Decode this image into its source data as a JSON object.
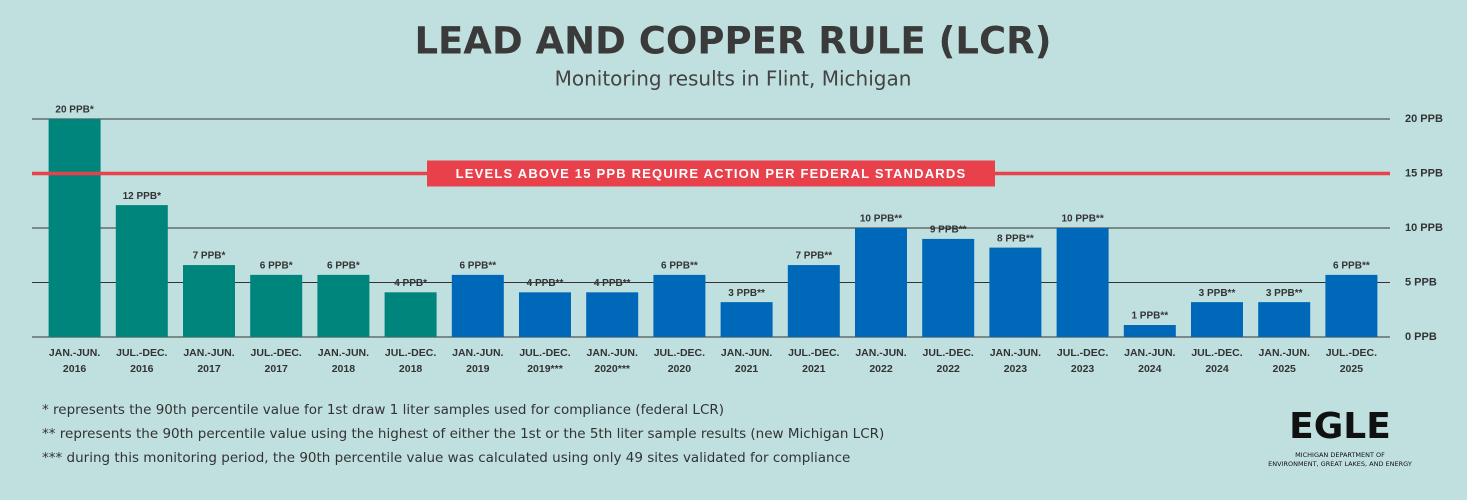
{
  "chart_data": {
    "type": "bar",
    "title": "LEAD AND COPPER RULE (LCR)",
    "subtitle": "Monitoring results in Flint, Michigan",
    "categories": [
      "JAN.-JUN.\n2016",
      "JUL.-DEC.\n2016",
      "JAN.-JUN.\n2017",
      "JUL.-DEC.\n2017",
      "JAN.-JUN.\n2018",
      "JUL.-DEC.\n2018",
      "JAN.-JUN.\n2019",
      "JUL.-DEC.\n2019***",
      "JAN.-JUN.\n2020***",
      "JUL.-DEC.\n2020",
      "JAN.-JUN.\n2021",
      "JUL.-DEC.\n2021",
      "JAN.-JUN.\n2022",
      "JUL.-DEC.\n2022",
      "JAN.-JUN.\n2023",
      "JUL.-DEC.\n2023",
      "JAN.-JUN.\n2024",
      "JUL.-DEC.\n2024",
      "JAN.-JUN.\n2025",
      "JUL.-DEC.\n2025"
    ],
    "values": [
      20,
      12.1,
      6.6,
      5.7,
      5.7,
      4.1,
      5.7,
      4.1,
      4.1,
      5.7,
      3.2,
      6.6,
      10,
      9,
      8.2,
      10,
      1.1,
      3.2,
      3.2,
      5.7
    ],
    "value_labels": [
      "20 PPB*",
      "12 PPB*",
      "7 PPB*",
      "6 PPB*",
      "6 PPB*",
      "4 PPB*",
      "6 PPB**",
      "4 PPB**",
      "4 PPB**",
      "6 PPB**",
      "3 PPB**",
      "7 PPB**",
      "10 PPB**",
      "9 PPB**",
      "8 PPB**",
      "10 PPB**",
      "1 PPB**",
      "3 PPB**",
      "3 PPB**",
      "6 PPB**"
    ],
    "colors": [
      "#00857d",
      "#00857d",
      "#00857d",
      "#00857d",
      "#00857d",
      "#00857d",
      "#0068b9",
      "#0068b9",
      "#0068b9",
      "#0068b9",
      "#0068b9",
      "#0068b9",
      "#0068b9",
      "#0068b9",
      "#0068b9",
      "#0068b9",
      "#0068b9",
      "#0068b9",
      "#0068b9",
      "#0068b9"
    ],
    "ylim": [
      0,
      20
    ],
    "yticks": [
      {
        "value": 0,
        "label": "0 PPB"
      },
      {
        "value": 5,
        "label": "5 PPB"
      },
      {
        "value": 10,
        "label": "10 PPB"
      },
      {
        "value": 15,
        "label": "15 PPB"
      },
      {
        "value": 20,
        "label": "20 PPB"
      }
    ],
    "grid": true,
    "threshold": {
      "value": 15,
      "label": "LEVELS ABOVE 15 PPB REQUIRE ACTION PER FEDERAL STANDARDS",
      "color": "#e8414b"
    },
    "notes": [
      "* represents the 90th percentile value for 1st draw 1 liter samples used for compliance (federal LCR)",
      "** represents the 90th percentile value using the highest of either the 1st or the 5th liter sample results (new Michigan LCR)",
      "*** during this monitoring period, the 90th percentile value was calculated using only 49 sites validated for compliance"
    ]
  },
  "logo": {
    "name": "EGLE",
    "line1": "MICHIGAN DEPARTMENT OF",
    "line2": "ENVIRONMENT, GREAT LAKES, AND ENERGY"
  }
}
